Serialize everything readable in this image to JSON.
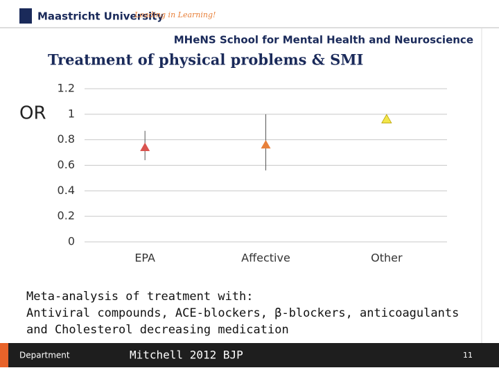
{
  "header": {
    "university": "Maastricht University",
    "tagline": "Leading in Learning!",
    "school": "MHeNS School for Mental Health and Neuroscience"
  },
  "chart_data": {
    "type": "scatter",
    "title": "Treatment of physical problems & SMI",
    "y_label": "OR",
    "categories": [
      "EPA",
      "Affective",
      "Other"
    ],
    "values": [
      0.74,
      0.76,
      0.96
    ],
    "lower": [
      0.64,
      0.56,
      null
    ],
    "upper": [
      0.87,
      1.0,
      null
    ],
    "colors": [
      "#d9534f",
      "#e8803a",
      "#f2e64a"
    ],
    "ylim": [
      0,
      1.2
    ],
    "yticks": [
      0,
      0.2,
      0.4,
      0.6,
      0.8,
      1,
      1.2
    ],
    "grid": true
  },
  "body": {
    "lines": [
      "Meta-analysis of treatment with:",
      "Antiviral compounds, ACE-blockers, β-blockers, anticoagulants",
      "and Cholesterol decreasing medication"
    ]
  },
  "footer": {
    "department": "Department",
    "reference": "Mitchell 2012 BJP",
    "page": "11"
  }
}
